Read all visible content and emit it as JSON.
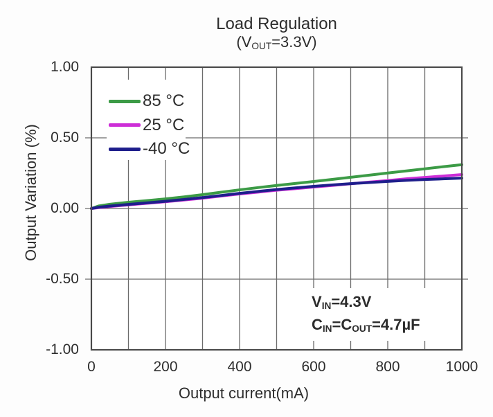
{
  "page": {
    "background": "#fdfdfd",
    "text_color": "#2d2d2d"
  },
  "chart_data": {
    "type": "line",
    "title": "Load Regulation",
    "subtitle": "(V~OUT~=3.3V)",
    "xlabel": "Output current(mA)",
    "ylabel": "Output Variation (%)",
    "xlim": [
      0,
      1000
    ],
    "ylim": [
      -1.0,
      1.0
    ],
    "grid": {
      "on": true,
      "x_step": 100,
      "color": "#6b6b6b",
      "frame_color": "#4a4a4a"
    },
    "xticks": [
      {
        "value": 0,
        "label": "0"
      },
      {
        "value": 200,
        "label": "200"
      },
      {
        "value": 400,
        "label": "400"
      },
      {
        "value": 600,
        "label": "600"
      },
      {
        "value": 800,
        "label": "800"
      },
      {
        "value": 1000,
        "label": "1000"
      }
    ],
    "yticks": [
      {
        "value": 1.0,
        "label": "1.00"
      },
      {
        "value": 0.5,
        "label": "0.50"
      },
      {
        "value": 0.0,
        "label": "0.00"
      },
      {
        "value": -0.5,
        "label": "-0.50"
      },
      {
        "value": -1.0,
        "label": "-1.00"
      }
    ],
    "legend": {
      "position": "top-left",
      "items": [
        {
          "name": "85 °C",
          "color": "#3c9b46"
        },
        {
          "name": "25 °C",
          "color": "#cd2dd7"
        },
        {
          "name": "-40 °C",
          "color": "#1e1e8c"
        }
      ]
    },
    "series": [
      {
        "name": "85 °C",
        "color": "#3c9b46",
        "points": [
          [
            0,
            0.0
          ],
          [
            20,
            0.018
          ],
          [
            50,
            0.03
          ],
          [
            100,
            0.044
          ],
          [
            150,
            0.056
          ],
          [
            200,
            0.068
          ],
          [
            250,
            0.082
          ],
          [
            300,
            0.098
          ],
          [
            350,
            0.115
          ],
          [
            400,
            0.132
          ],
          [
            450,
            0.148
          ],
          [
            500,
            0.163
          ],
          [
            550,
            0.177
          ],
          [
            600,
            0.191
          ],
          [
            650,
            0.206
          ],
          [
            700,
            0.221
          ],
          [
            750,
            0.236
          ],
          [
            800,
            0.251
          ],
          [
            850,
            0.266
          ],
          [
            900,
            0.281
          ],
          [
            950,
            0.296
          ],
          [
            1000,
            0.31
          ]
        ]
      },
      {
        "name": "25 °C",
        "color": "#cd2dd7",
        "points": [
          [
            0,
            0.0
          ],
          [
            20,
            0.006
          ],
          [
            50,
            0.014
          ],
          [
            100,
            0.026
          ],
          [
            150,
            0.037
          ],
          [
            200,
            0.048
          ],
          [
            250,
            0.06
          ],
          [
            300,
            0.073
          ],
          [
            350,
            0.088
          ],
          [
            400,
            0.103
          ],
          [
            450,
            0.116
          ],
          [
            500,
            0.129
          ],
          [
            550,
            0.14
          ],
          [
            600,
            0.152
          ],
          [
            650,
            0.163
          ],
          [
            700,
            0.175
          ],
          [
            750,
            0.187
          ],
          [
            800,
            0.198
          ],
          [
            850,
            0.21
          ],
          [
            900,
            0.22
          ],
          [
            950,
            0.23
          ],
          [
            1000,
            0.24
          ]
        ]
      },
      {
        "name": "-40 °C",
        "color": "#1e1e8c",
        "points": [
          [
            0,
            0.0
          ],
          [
            20,
            0.009
          ],
          [
            50,
            0.017
          ],
          [
            100,
            0.029
          ],
          [
            150,
            0.04
          ],
          [
            200,
            0.051
          ],
          [
            250,
            0.064
          ],
          [
            300,
            0.077
          ],
          [
            350,
            0.092
          ],
          [
            400,
            0.107
          ],
          [
            450,
            0.121
          ],
          [
            500,
            0.134
          ],
          [
            550,
            0.146
          ],
          [
            600,
            0.157
          ],
          [
            650,
            0.167
          ],
          [
            700,
            0.176
          ],
          [
            750,
            0.184
          ],
          [
            800,
            0.192
          ],
          [
            850,
            0.199
          ],
          [
            900,
            0.205
          ],
          [
            950,
            0.21
          ],
          [
            1000,
            0.215
          ]
        ]
      }
    ],
    "annotation": {
      "lines": [
        "V~IN~=4.3V",
        "C~IN~=C~OUT~=4.7µF"
      ]
    }
  }
}
